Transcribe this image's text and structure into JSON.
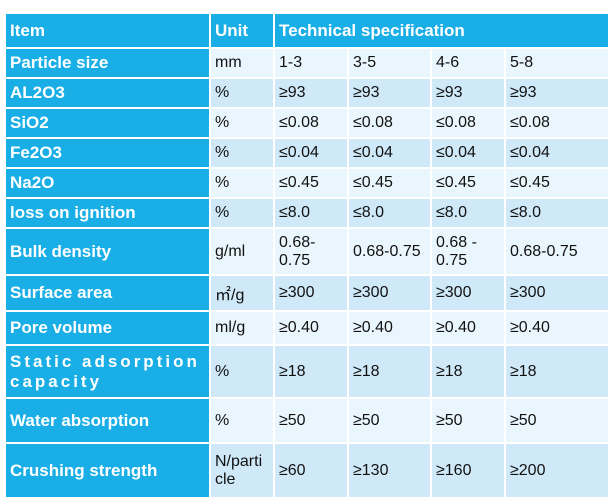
{
  "table": {
    "header": [
      "Item",
      "Unit",
      "Technical specification"
    ],
    "rows": [
      [
        "Particle size",
        "mm",
        "1-3",
        "3-5",
        "4-6",
        "5-8"
      ],
      [
        "AL2O3",
        "%",
        "≥93",
        "≥93",
        "≥93",
        "≥93"
      ],
      [
        "SiO2",
        "%",
        "≤0.08",
        "≤0.08",
        "≤0.08",
        "≤0.08"
      ],
      [
        "Fe2O3",
        "%",
        "≤0.04",
        "≤0.04",
        "≤0.04",
        "≤0.04"
      ],
      [
        "Na2O",
        "%",
        "≤0.45",
        "≤0.45",
        "≤0.45",
        "≤0.45"
      ],
      [
        "loss on ignition",
        "%",
        "≤8.0",
        "≤8.0",
        "≤8.0",
        "≤8.0"
      ],
      [
        "Bulk density",
        "g/ml",
        "0.68-0.75",
        "0.68-0.75",
        "0.68 - 0.75",
        "0.68-0.75"
      ],
      [
        "Surface area",
        "㎡/g",
        "≥300",
        "≥300",
        "≥300",
        "≥300"
      ],
      [
        "Pore volume",
        "ml/g",
        "≥0.40",
        "≥0.40",
        "≥0.40",
        "≥0.40"
      ],
      [
        "Static adsorption capacity",
        "%",
        "≥18",
        "≥18",
        "≥18",
        "≥18"
      ],
      [
        "Water absorption",
        "%",
        "≥50",
        "≥50",
        "≥50",
        "≥50"
      ],
      [
        "Crushing strength",
        "N/particle",
        "≥60",
        "≥130",
        "≥160",
        "≥200"
      ]
    ]
  }
}
